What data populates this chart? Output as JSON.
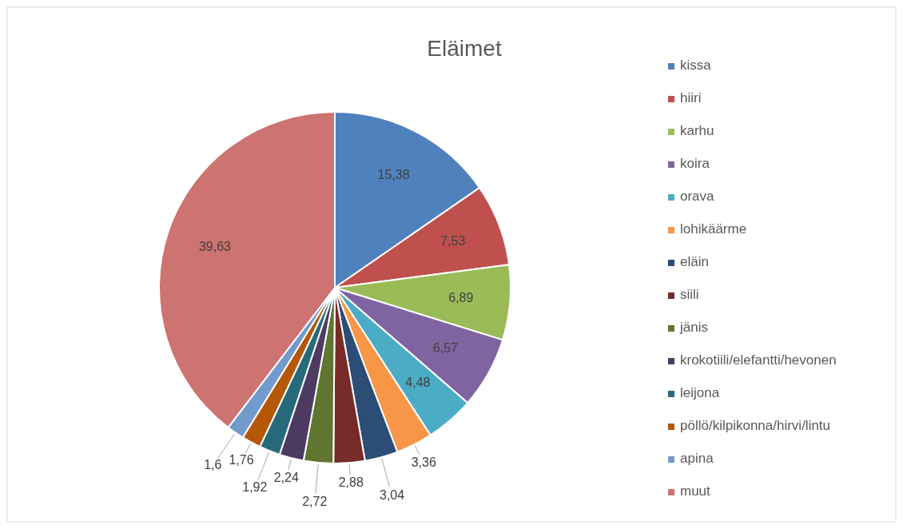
{
  "chart_data": {
    "type": "pie",
    "title": "Eläimet",
    "categories": [
      "kissa",
      "hiiri",
      "karhu",
      "koira",
      "orava",
      "lohikäärme",
      "eläin",
      "siili",
      "jänis",
      "krokotiili/elefantti/hevonen",
      "leijona",
      "pöllö/kilpikonna/hirvi/lintu",
      "apina",
      "muut"
    ],
    "values": [
      15.38,
      7.53,
      6.89,
      6.57,
      4.48,
      3.36,
      3.04,
      2.88,
      2.72,
      2.24,
      1.92,
      1.76,
      1.6,
      39.63
    ],
    "value_labels": [
      "15,38",
      "7,53",
      "6,89",
      "6,57",
      "4,48",
      "3,36",
      "3,04",
      "2,88",
      "2,72",
      "2,24",
      "1,92",
      "1,76",
      "1,6",
      "39,63"
    ],
    "colors": [
      "#4f81bd",
      "#c0504d",
      "#9bbb59",
      "#8064a2",
      "#4bacc6",
      "#f79646",
      "#2c4d75",
      "#772c2a",
      "#5f7530",
      "#4d3b62",
      "#276a7c",
      "#b65708",
      "#729aca",
      "#cd7371"
    ],
    "legend": "right"
  }
}
